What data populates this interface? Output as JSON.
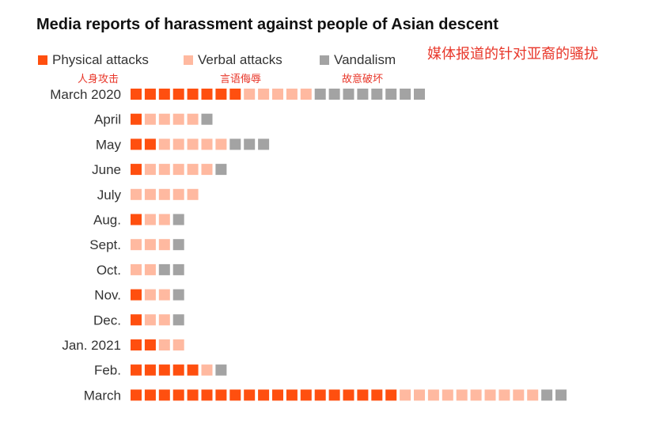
{
  "colors": {
    "physical": "#ff4f0f",
    "verbal": "#ffb9a0",
    "vandalism": "#a3a3a3"
  },
  "chart_data": {
    "type": "bar",
    "title": "Media reports of harassment against people of Asian descent",
    "annotation_cn": "媒体报道的针对亚裔的骚扰",
    "legend": [
      {
        "key": "physical",
        "name": "Physical attacks",
        "cn": "人身攻击"
      },
      {
        "key": "verbal",
        "name": "Verbal attacks",
        "cn": "言语侮辱"
      },
      {
        "key": "vandalism",
        "name": "Vandalism",
        "cn": "故意破坏"
      }
    ],
    "categories": [
      "March 2020",
      "April",
      "May",
      "June",
      "July",
      "Aug.",
      "Sept.",
      "Oct.",
      "Nov.",
      "Dec.",
      "Jan. 2021",
      "Feb.",
      "March"
    ],
    "series": [
      {
        "name": "Physical attacks",
        "key": "physical",
        "values": [
          8,
          1,
          2,
          1,
          0,
          1,
          0,
          0,
          1,
          1,
          2,
          5,
          19
        ]
      },
      {
        "name": "Verbal attacks",
        "key": "verbal",
        "values": [
          5,
          4,
          5,
          5,
          5,
          2,
          3,
          2,
          2,
          2,
          2,
          1,
          10
        ]
      },
      {
        "name": "Vandalism",
        "key": "vandalism",
        "values": [
          8,
          1,
          3,
          1,
          0,
          1,
          1,
          2,
          1,
          1,
          0,
          1,
          2
        ]
      }
    ],
    "unit": "one square per report"
  }
}
